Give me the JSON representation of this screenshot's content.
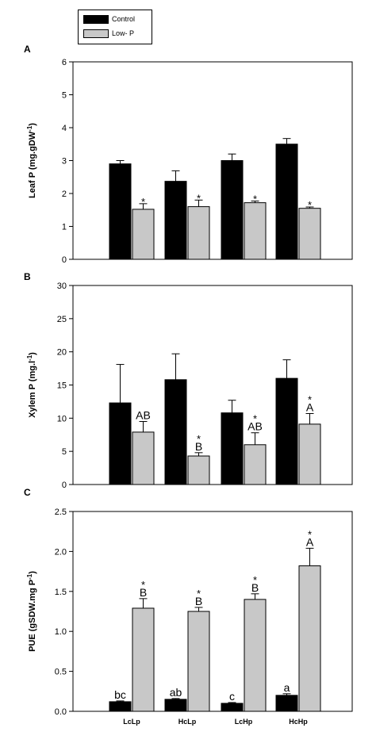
{
  "legend": {
    "items": [
      {
        "label": "Control",
        "color": "#000000"
      },
      {
        "label": "Low- P",
        "color": "#c8c8c8"
      }
    ]
  },
  "colors": {
    "control": "#000000",
    "lowp": "#c8c8c8"
  },
  "chart_data": [
    {
      "type": "bar",
      "panel": "A",
      "categories": [
        "LcLp",
        "HcLp",
        "LcHp",
        "HcHp"
      ],
      "ylabel": "Leaf P (mg.gDW-1)",
      "ylim": [
        0,
        6
      ],
      "yticks": [
        0,
        1,
        2,
        3,
        4,
        5,
        6
      ],
      "series": [
        {
          "name": "Control",
          "values": [
            2.9,
            2.37,
            3.0,
            3.5
          ],
          "errors": [
            0.1,
            0.32,
            0.2,
            0.17
          ],
          "labels": [
            "",
            "",
            "",
            ""
          ]
        },
        {
          "name": "Low- P",
          "values": [
            1.52,
            1.6,
            1.72,
            1.55
          ],
          "errors": [
            0.17,
            0.2,
            0.05,
            0.04
          ],
          "labels": [
            "*",
            "*",
            "*",
            "*"
          ]
        }
      ]
    },
    {
      "type": "bar",
      "panel": "B",
      "categories": [
        "LcLp",
        "HcLp",
        "LcHp",
        "HcHp"
      ],
      "ylabel": "Xylem P (mg.l-1)",
      "ylim": [
        0,
        30
      ],
      "yticks": [
        0,
        5,
        10,
        15,
        20,
        25,
        30
      ],
      "series": [
        {
          "name": "Control",
          "values": [
            12.3,
            15.8,
            10.8,
            16.0
          ],
          "errors": [
            5.8,
            3.9,
            1.9,
            2.8
          ],
          "labels": [
            "",
            "",
            "",
            ""
          ]
        },
        {
          "name": "Low- P",
          "values": [
            7.9,
            4.3,
            6.0,
            9.1
          ],
          "errors": [
            1.6,
            0.5,
            1.8,
            1.6
          ],
          "labels": [
            "AB",
            "*\nB",
            "*\nAB",
            "*\nA"
          ]
        }
      ]
    },
    {
      "type": "bar",
      "panel": "C",
      "categories": [
        "LcLp",
        "HcLp",
        "LcHp",
        "HcHp"
      ],
      "ylabel": "PUE (gSDW.mg P-1)",
      "ylim": [
        0,
        2.5
      ],
      "yticks": [
        "0.0",
        "0.5",
        "1.0",
        "1.5",
        "2.0",
        "2.5"
      ],
      "series": [
        {
          "name": "Control",
          "values": [
            0.12,
            0.15,
            0.1,
            0.2
          ],
          "errors": [
            0.01,
            0.01,
            0.01,
            0.02
          ],
          "labels": [
            "bc",
            "ab",
            "c",
            "a"
          ]
        },
        {
          "name": "Low- P",
          "values": [
            1.29,
            1.25,
            1.4,
            1.82
          ],
          "errors": [
            0.12,
            0.05,
            0.07,
            0.22
          ],
          "labels": [
            "*\nB",
            "*\nB",
            "*\nB",
            "*\nA"
          ]
        }
      ]
    }
  ]
}
